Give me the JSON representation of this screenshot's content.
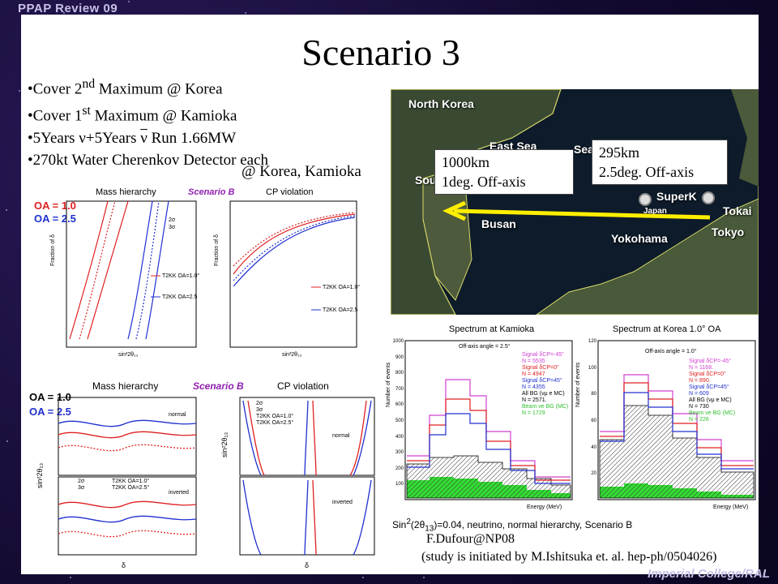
{
  "header": "PPAP Review 09",
  "footer": "Imperial College/RAL",
  "title": "Scenario 3",
  "bullets": [
    {
      "html": "•Cover 2<sup>nd</sup> Maximum @ Korea"
    },
    {
      "html": "•Cover 1<sup>st</sup>  Maximum @ Kamioka"
    },
    {
      "html": "•5Years ν+5Years <span style='text-decoration:overline'>ν</span> Run 1.66MW"
    },
    {
      "html": "•270kt Water Cherenkov Detector each"
    }
  ],
  "bullet_last": "@ Korea, Kamioka",
  "map": {
    "labels": {
      "north_korea": "North Korea",
      "east_sea": "East Sea",
      "sea": "Sea",
      "busan": "Busan",
      "superk": "SuperK",
      "japan": "Japan",
      "tokai": "Tokai",
      "yokohama": "Yokohama",
      "tokyo": "Tokyo",
      "south": "South"
    },
    "box_korea": [
      "1000km",
      "1deg. Off-axis"
    ],
    "box_kamioka": [
      "295km",
      "2.5deg. Off-axis"
    ]
  },
  "top_left_panel": {
    "oa1": "OA = 1.0",
    "oa2": "OA = 2.5",
    "t1": "Mass hierarchy",
    "scenario": "Scenario B",
    "t2": "CP violation",
    "ylabel": "Fraction of δ",
    "xlabel": "sin²2θ₁₃",
    "legend1": [
      "T2KK OA=1.0°",
      "T2KK OA=2.5"
    ],
    "legend2": [
      "T2KK OA=1.0°",
      "T2KK OA=2.5"
    ],
    "sig": [
      "2σ",
      "3σ"
    ]
  },
  "bottom_left_panel": {
    "oa1": "OA = 1.0",
    "oa2": "OA = 2.5",
    "t1": "Mass hierarchy",
    "scenario": "Scenario B",
    "t2": "CP violation",
    "normal": "normal",
    "inverted": "inverted",
    "ylabel": "sin²2θ₁₃",
    "xlabel": "δ",
    "legend": [
      "2σ",
      "3σ",
      "T2KK OA=1.0°",
      "T2KK OA=2.5°"
    ]
  },
  "spectra": {
    "kamioka": {
      "title": "Spectrum at Kamioka",
      "offaxis": "Off-axis angle = 2.5°",
      "lines": [
        {
          "t": "Signal δCP=-45°",
          "c": "#d040d0"
        },
        {
          "t": "N = 5535",
          "c": "#d040d0"
        },
        {
          "t": "Signal δCP=0°",
          "c": "#e02020"
        },
        {
          "t": "N = 4947",
          "c": "#e02020"
        },
        {
          "t": "Signal δCP=45°",
          "c": "#2030d0"
        },
        {
          "t": "N = 4355",
          "c": "#2030d0"
        },
        {
          "t": "All BG (νμ e MC)",
          "c": "#000000"
        },
        {
          "t": "N = 2571.",
          "c": "#000000"
        },
        {
          "t": "Beam νe BG (MC)",
          "c": "#30c030"
        },
        {
          "t": "N = 1729",
          "c": "#30c030"
        }
      ],
      "ylabel": "Number of events",
      "xlabel": "Energy (MeV)",
      "yticks": [
        "1000",
        "900",
        "800",
        "700",
        "600",
        "500",
        "400",
        "300",
        "200",
        "100"
      ]
    },
    "korea": {
      "title": "Spectrum at Korea 1.0° OA",
      "offaxis": "Off-axis angle = 1.0°",
      "lines": [
        {
          "t": "Signal δCP=-45°",
          "c": "#d040d0"
        },
        {
          "t": "N = 1168.",
          "c": "#d040d0"
        },
        {
          "t": "Signal δCP=0°",
          "c": "#e02020"
        },
        {
          "t": "N = 890.",
          "c": "#e02020"
        },
        {
          "t": "Signal δCP=45°",
          "c": "#2030d0"
        },
        {
          "t": "N = 609",
          "c": "#2030d0"
        },
        {
          "t": "All BG (νμ e MC)",
          "c": "#000000"
        },
        {
          "t": "N = 730",
          "c": "#000000"
        },
        {
          "t": "Beam νe BG (MC)",
          "c": "#30c030"
        },
        {
          "t": "N = 226",
          "c": "#30c030"
        }
      ],
      "ylabel": "Number of events",
      "xlabel": "Energy (MeV)",
      "yticks": [
        "120",
        "100",
        "80",
        "60",
        "40",
        "20"
      ]
    }
  },
  "caption_html": "Sin<sup>2</sup>(2θ<sub>13</sub>)=0.04, neutrino, normal hierarchy, Scenario B",
  "credit": "F.Dufour@NP08",
  "study": "(study is initiated by M.Ishitsuka et. al. hep-ph/0504026)",
  "colors": {
    "red": "#e02020",
    "blue": "#2030d0",
    "magenta": "#d040d0",
    "green": "#33dd33",
    "yellow": "#ffee00"
  }
}
